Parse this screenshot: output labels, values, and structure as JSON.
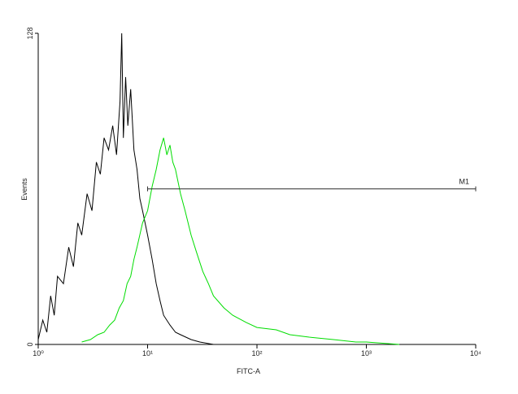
{
  "chart_data": {
    "type": "histogram-overlay",
    "xlabel": "FITC-A",
    "ylabel": "Events",
    "xscale": "log",
    "xlim": [
      1,
      10000
    ],
    "xticks": [
      {
        "value": 1,
        "label": "10⁰"
      },
      {
        "value": 10,
        "label": "10¹"
      },
      {
        "value": 100,
        "label": "10²"
      },
      {
        "value": 1000,
        "label": "10³"
      },
      {
        "value": 10000,
        "label": "10⁴"
      }
    ],
    "ylim": [
      0,
      128
    ],
    "yticks": [
      0,
      128
    ],
    "series": [
      {
        "name": null,
        "color": "#000000",
        "x": [
          1,
          1.1,
          1.2,
          1.3,
          1.4,
          1.5,
          1.7,
          1.9,
          2.1,
          2.3,
          2.5,
          2.8,
          3.1,
          3.4,
          3.7,
          4,
          4.4,
          4.8,
          5.2,
          5.6,
          5.8,
          6,
          6.3,
          6.6,
          7,
          7.5,
          8,
          8.5,
          9,
          10,
          11,
          12,
          13,
          14,
          16,
          18,
          20,
          25,
          30,
          40
        ],
        "values": [
          2,
          10,
          5,
          20,
          12,
          28,
          25,
          40,
          32,
          50,
          45,
          62,
          55,
          75,
          70,
          85,
          80,
          90,
          78,
          100,
          128,
          85,
          110,
          90,
          105,
          80,
          72,
          60,
          55,
          45,
          35,
          25,
          18,
          12,
          8,
          5,
          4,
          2,
          1,
          0
        ]
      },
      {
        "name": null,
        "color": "#00dd00",
        "x": [
          2.5,
          3,
          3.5,
          4,
          4.5,
          5,
          5.5,
          6,
          6.5,
          7,
          7.5,
          8,
          9,
          10,
          11,
          12,
          13,
          14,
          15,
          16,
          17,
          18,
          20,
          22,
          25,
          28,
          32,
          36,
          40,
          50,
          60,
          80,
          100,
          150,
          200,
          300,
          500,
          800,
          1000,
          2000
        ],
        "values": [
          1,
          2,
          4,
          5,
          8,
          10,
          15,
          18,
          25,
          28,
          35,
          40,
          50,
          55,
          65,
          72,
          80,
          85,
          78,
          82,
          75,
          72,
          62,
          55,
          45,
          38,
          30,
          25,
          20,
          15,
          12,
          9,
          7,
          6,
          4,
          3,
          2,
          1,
          1,
          0
        ]
      }
    ],
    "marker": {
      "label": "M1",
      "x": [
        10,
        10000
      ],
      "y": 64
    }
  }
}
